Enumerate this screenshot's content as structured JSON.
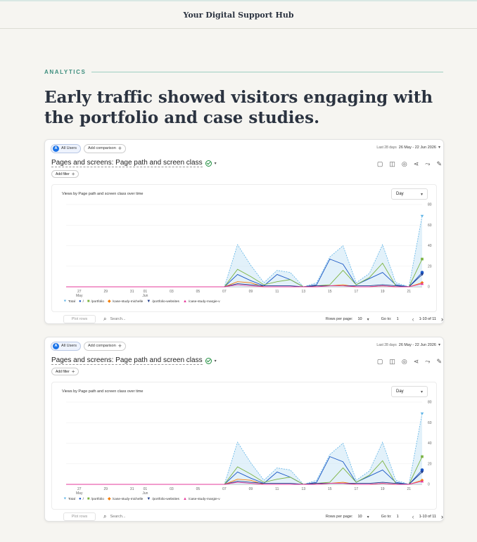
{
  "site_title": "Your Digital Support Hub",
  "eyebrow": "ANALYTICS",
  "headline": "Early traffic showed visitors engaging with the portfolio and case studies.",
  "report": {
    "segment_badge": "A",
    "segment_label": "All Users",
    "add_comparison": "Add comparison",
    "date_prefix": "Last 28 days",
    "date_range": "26 May - 22 Jun 2026",
    "title": "Pages and screens: Page path and screen class",
    "add_filter": "Add filter",
    "chart_title": "Views by Page path and screen class over time",
    "granularity": "Day",
    "plot_rows": "Plot rows",
    "search_placeholder": "Search...",
    "rows_per_page_label": "Rows per page:",
    "rows_per_page": "10",
    "goto_label": "Go to:",
    "goto_value": "1",
    "pagination": "1-10 of 11",
    "icons": [
      "edit-icon",
      "compare-icon",
      "insights-icon",
      "share-icon",
      "trend-icon",
      "pencil-icon"
    ]
  },
  "chart_data": {
    "type": "line",
    "x": [
      "May 26",
      "May 27",
      "May 28",
      "May 29",
      "May 30",
      "May 31",
      "Jun 01",
      "Jun 02",
      "Jun 03",
      "Jun 04",
      "Jun 05",
      "Jun 06",
      "Jun 07",
      "Jun 08",
      "Jun 09",
      "Jun 10",
      "Jun 11",
      "Jun 12",
      "Jun 13",
      "Jun 14",
      "Jun 15",
      "Jun 16",
      "Jun 17",
      "Jun 18",
      "Jun 19",
      "Jun 20",
      "Jun 21",
      "Jun 22"
    ],
    "x_tick_labels": [
      {
        "x": "May 27",
        "label": "27",
        "sub": "May"
      },
      {
        "x": "May 29",
        "label": "29",
        "sub": ""
      },
      {
        "x": "May 31",
        "label": "31",
        "sub": ""
      },
      {
        "x": "Jun 01",
        "label": "01",
        "sub": "Jun"
      },
      {
        "x": "Jun 03",
        "label": "03",
        "sub": ""
      },
      {
        "x": "Jun 05",
        "label": "05",
        "sub": ""
      },
      {
        "x": "Jun 07",
        "label": "07",
        "sub": ""
      },
      {
        "x": "Jun 09",
        "label": "09",
        "sub": ""
      },
      {
        "x": "Jun 11",
        "label": "11",
        "sub": ""
      },
      {
        "x": "Jun 13",
        "label": "13",
        "sub": ""
      },
      {
        "x": "Jun 15",
        "label": "15",
        "sub": ""
      },
      {
        "x": "Jun 17",
        "label": "17",
        "sub": ""
      },
      {
        "x": "Jun 19",
        "label": "19",
        "sub": ""
      },
      {
        "x": "Jun 21",
        "label": "21",
        "sub": ""
      }
    ],
    "y_ticks": [
      0,
      20,
      40,
      60,
      80
    ],
    "ylim": [
      0,
      80
    ],
    "y_axis_side": "right",
    "grid": true,
    "legend_position": "bottom-left",
    "series": [
      {
        "name": "Total",
        "color": "#5eb3e6",
        "marker": "diamond-down",
        "area": true,
        "values": [
          0,
          0,
          0,
          0,
          0,
          0,
          0,
          0,
          0,
          0,
          0,
          0,
          0,
          41,
          21,
          4,
          16,
          14,
          0,
          4,
          29,
          40,
          4,
          13,
          41,
          4,
          0,
          69
        ]
      },
      {
        "name": "/",
        "color": "#1a56c4",
        "marker": "circle",
        "values": [
          0,
          0,
          0,
          0,
          0,
          0,
          0,
          0,
          0,
          0,
          0,
          0,
          0,
          12,
          6,
          1,
          12,
          7,
          0,
          2,
          27,
          22,
          2,
          8,
          14,
          2,
          0,
          14
        ]
      },
      {
        "name": "/portfolio",
        "color": "#7cb342",
        "marker": "square",
        "values": [
          0,
          0,
          0,
          0,
          0,
          0,
          0,
          0,
          0,
          0,
          0,
          0,
          0,
          17,
          10,
          2,
          5,
          7,
          0,
          1,
          2,
          16,
          2,
          9,
          23,
          1,
          0,
          27
        ]
      },
      {
        "name": "/case-study-michelle",
        "color": "#f57c00",
        "marker": "diamond",
        "values": [
          0,
          0,
          0,
          0,
          0,
          0,
          0,
          0,
          0,
          0,
          0,
          0,
          0,
          5,
          4,
          0,
          0,
          0,
          0,
          1,
          1,
          2,
          0,
          0,
          1,
          0,
          0,
          4
        ]
      },
      {
        "name": "/portfolio-websites",
        "color": "#1e3a8a",
        "marker": "triangle-down",
        "values": [
          0,
          0,
          0,
          0,
          0,
          0,
          0,
          0,
          0,
          0,
          0,
          0,
          0,
          3,
          2,
          1,
          1,
          1,
          0,
          1,
          1,
          1,
          1,
          1,
          2,
          1,
          0,
          12
        ]
      },
      {
        "name": "/case-study-margie-v",
        "color": "#e6399b",
        "marker": "triangle-up",
        "values": [
          0,
          0,
          0,
          0,
          0,
          0,
          0,
          0,
          0,
          0,
          0,
          0,
          0,
          2,
          1,
          0,
          0,
          0,
          0,
          0,
          1,
          1,
          0,
          0,
          1,
          0,
          0,
          3
        ]
      }
    ]
  }
}
